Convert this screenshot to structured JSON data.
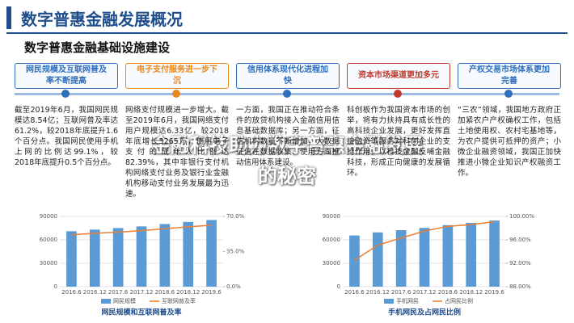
{
  "header": {
    "title": "数字普惠金融发展概况",
    "subtitle": "数字普惠金融基础设施建设"
  },
  "columns": [
    {
      "heading": "网民规模及互联网普及率不断提高",
      "color": "#2f6eba",
      "text": "截至2019年6月，我国网民规模达8.54亿；互联网普及率达61.2%，较2018年底提升1.6个百分点。我国网民使用手机上网的比例达99.1%，较2018年底提升0.5个百分点。"
    },
    {
      "heading": "电子支付服务进一步下沉",
      "color": "#e8871e",
      "text": "网络支付规模进一步增大。截至2019年6月，我国网络支付用户规模达6.33亿，较2018年底增长3265万，使用电子支付的成年人比例达82.39%，其中非银行支付机构网络支付业务及银行业金融机构移动支付业务发展最为迅速。"
    },
    {
      "heading": "信用体系现代化进程加快",
      "color": "#2f6eba",
      "text": "一方面，我国正在推动符合条件的放贷机构接入金融信用信息基础数据库；另一方面，征信机构数量不断增加，大数据征信在数据收集、使用方面推动信用体系建设。"
    },
    {
      "heading": "资本市场渠道更加多元",
      "color": "#c0392b",
      "text": "科创板作为我国资本市场的创举，将有力扶持具有成长性的高科技企业发展，更好发挥直接融资等服务对科创企业的支持作用，以科技金融反哺金融科技，形成正向健康的发展循环。"
    },
    {
      "heading": "产权交易市场体系更加完善",
      "color": "#2f6eba",
      "text": "“三农”领域，我国地方政府正加紧农户产权确权工作，包括土地使用权、农村宅基地等，为农户提供可抵押的资产；小微企业融资领域，我国正加快推进小微企业知识产权融资工作。"
    }
  ],
  "overlay": {
    "lines": [
      "金融科技助力数字普惠金融发展",
      "的秘密"
    ]
  },
  "charts": [
    {
      "type": "bar",
      "title": "网民规模和互联网普及率",
      "categories": [
        "2016.6",
        "2016.12",
        "2017.6",
        "2017.12",
        "2018.6",
        "2018.12",
        "2019.6"
      ],
      "series": [
        {
          "name": "网民规模",
          "color": "#5b9bd5",
          "values": [
            71000,
            73100,
            75100,
            77200,
            80200,
            82900,
            85400
          ]
        },
        {
          "name": "互联网普及率",
          "color": "#ed7d31",
          "axis": "y2",
          "values": [
            51.7,
            53.2,
            54.3,
            55.8,
            57.7,
            59.6,
            61.2
          ]
        }
      ],
      "ylim": [
        0,
        90000
      ],
      "yticks": [
        0,
        30000,
        60000,
        90000
      ],
      "y2lim": [
        0,
        70
      ],
      "y2ticks": [
        {
          "value": 0,
          "label": "0.0%"
        },
        {
          "value": 35,
          "label": "35.0%"
        },
        {
          "value": 70,
          "label": "70.0%"
        }
      ]
    },
    {
      "type": "bar",
      "title": "手机网民及占网民比例",
      "categories": [
        "2016.6",
        "2016.12",
        "2017.6",
        "2017.12",
        "2018.6",
        "2018.12",
        "2019.6"
      ],
      "series": [
        {
          "name": "手机网民",
          "color": "#5b9bd5",
          "values": [
            65600,
            69500,
            72400,
            75300,
            78800,
            81700,
            84700
          ]
        },
        {
          "name": "占网民比例",
          "color": "#ed7d31",
          "axis": "y2",
          "values": [
            92.5,
            95.1,
            96.3,
            97.5,
            98.3,
            98.6,
            99.1
          ]
        }
      ],
      "ylim": [
        0,
        90000
      ],
      "yticks": [
        0,
        30000,
        60000,
        90000
      ],
      "y2lim": [
        88,
        100
      ],
      "y2ticks": [
        {
          "value": 88,
          "label": "88.00%"
        },
        {
          "value": 92,
          "label": "92.00%"
        },
        {
          "value": 96,
          "label": "96.00%"
        },
        {
          "value": 100,
          "label": "100.00%"
        }
      ]
    }
  ]
}
